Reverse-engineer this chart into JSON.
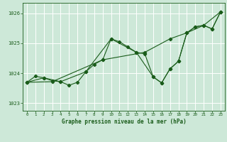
{
  "title": "Graphe pression niveau de la mer (hPa)",
  "bg_color": "#cde8d8",
  "grid_color": "#ffffff",
  "line_color": "#1a5c1a",
  "xlim": [
    -0.5,
    23.5
  ],
  "ylim": [
    1022.75,
    1026.35
  ],
  "yticks": [
    1023,
    1024,
    1025,
    1026
  ],
  "xticks": [
    0,
    1,
    2,
    3,
    4,
    5,
    6,
    7,
    8,
    9,
    10,
    11,
    12,
    13,
    14,
    15,
    16,
    17,
    18,
    19,
    20,
    21,
    22,
    23
  ],
  "line1_x": [
    0,
    1,
    2,
    3,
    4,
    5,
    6,
    7,
    8,
    9,
    10,
    11,
    12,
    13,
    14,
    15,
    16,
    17,
    18,
    19,
    20,
    21,
    22,
    23
  ],
  "line1_y": [
    1023.7,
    1023.9,
    1023.85,
    1023.75,
    1023.72,
    1023.6,
    1023.7,
    1024.05,
    1024.3,
    1024.45,
    1025.15,
    1025.05,
    1024.88,
    1024.7,
    1024.65,
    1023.88,
    1023.68,
    1024.15,
    1024.4,
    1025.35,
    1025.55,
    1025.6,
    1025.48,
    1026.05
  ],
  "line2_x": [
    0,
    3,
    9,
    14,
    17,
    19,
    21,
    23
  ],
  "line2_y": [
    1023.7,
    1023.72,
    1024.45,
    1024.7,
    1025.15,
    1025.35,
    1025.6,
    1026.05
  ],
  "line3_x": [
    0,
    2,
    4,
    7,
    10,
    13,
    15,
    16,
    17,
    18,
    19,
    20,
    21,
    22,
    23
  ],
  "line3_y": [
    1023.7,
    1023.85,
    1023.72,
    1024.05,
    1025.15,
    1024.7,
    1023.88,
    1023.68,
    1024.15,
    1024.4,
    1025.35,
    1025.55,
    1025.6,
    1025.48,
    1026.05
  ]
}
